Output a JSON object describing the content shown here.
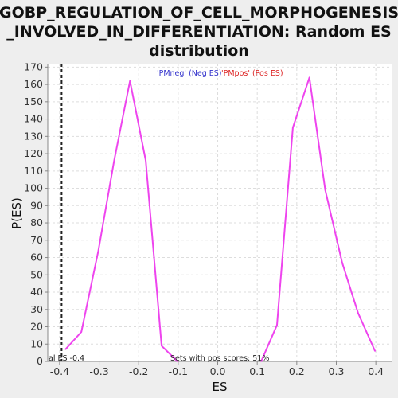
{
  "chart_data": {
    "type": "line",
    "title_lines": [
      "GOBP_REGULATION_OF_CELL_MORPHOGENESIS",
      "_INVOLVED_IN_DIFFERENTIATION: Random ES",
      "distribution"
    ],
    "xlabel": "ES",
    "ylabel": "P(ES)",
    "xlim": [
      -0.43,
      0.44
    ],
    "ylim": [
      0,
      172
    ],
    "xticks": [
      -0.4,
      -0.3,
      -0.2,
      -0.1,
      0.0,
      0.1,
      0.2,
      0.3,
      0.4
    ],
    "xtick_labels": [
      "-0.4",
      "-0.3",
      "-0.2",
      "-0.1",
      "0.0",
      "0.1",
      "0.2",
      "0.3",
      "0.4"
    ],
    "yticks": [
      0,
      10,
      20,
      30,
      40,
      50,
      60,
      70,
      80,
      90,
      100,
      110,
      120,
      130,
      140,
      150,
      160,
      170
    ],
    "grid": true,
    "line_color": "#ee44ee",
    "series": [
      {
        "name": "'PMneg' (Neg ES)",
        "color": "#3333cc",
        "x": [
          -0.385,
          -0.345,
          -0.302,
          -0.262,
          -0.222,
          -0.182,
          -0.142,
          -0.102
        ],
        "y": [
          7,
          17,
          64,
          116,
          162,
          116,
          9,
          0
        ]
      },
      {
        "name": "'PMpos' (Pos ES)",
        "color": "#dd2222",
        "x": [
          0.11,
          0.15,
          0.19,
          0.232,
          0.272,
          0.315,
          0.355,
          0.398
        ],
        "y": [
          0,
          21,
          135,
          164,
          99,
          57,
          28,
          6
        ]
      }
    ],
    "actual_es_label": "al ES -0.4",
    "actual_es": -0.395,
    "annotation": "Sets with pos scores: 51%"
  }
}
